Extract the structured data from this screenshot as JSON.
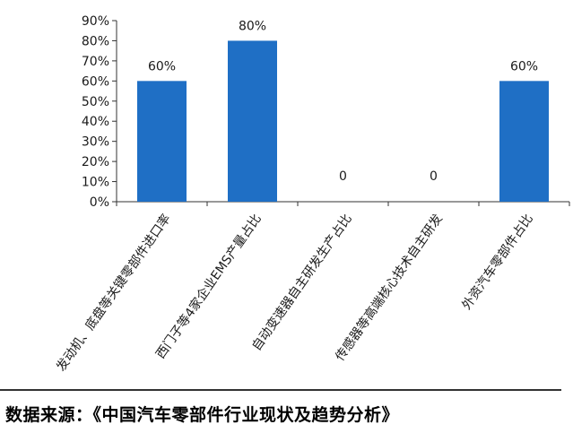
{
  "chart_data": {
    "type": "bar",
    "categories": [
      "发动机、底盘等关键零部件进口率",
      "西门子等4家企业EMS产量占比",
      "自动变速器自主研发生产占比",
      "传感器等高端核心技术自主研发",
      "外资汽车零部件占比"
    ],
    "values": [
      60,
      80,
      0,
      0,
      60
    ],
    "data_labels": [
      "60%",
      "80%",
      "0",
      "0",
      "60%"
    ],
    "y_ticks": [
      "0%",
      "10%",
      "20%",
      "30%",
      "40%",
      "50%",
      "60%",
      "70%",
      "80%",
      "90%"
    ],
    "ylim": [
      0,
      90
    ],
    "grid": false,
    "legend": "none",
    "bar_color": "#1f6fc5"
  },
  "source_text": "数据来源：《中国汽车零部件行业现状及趋势分析》"
}
